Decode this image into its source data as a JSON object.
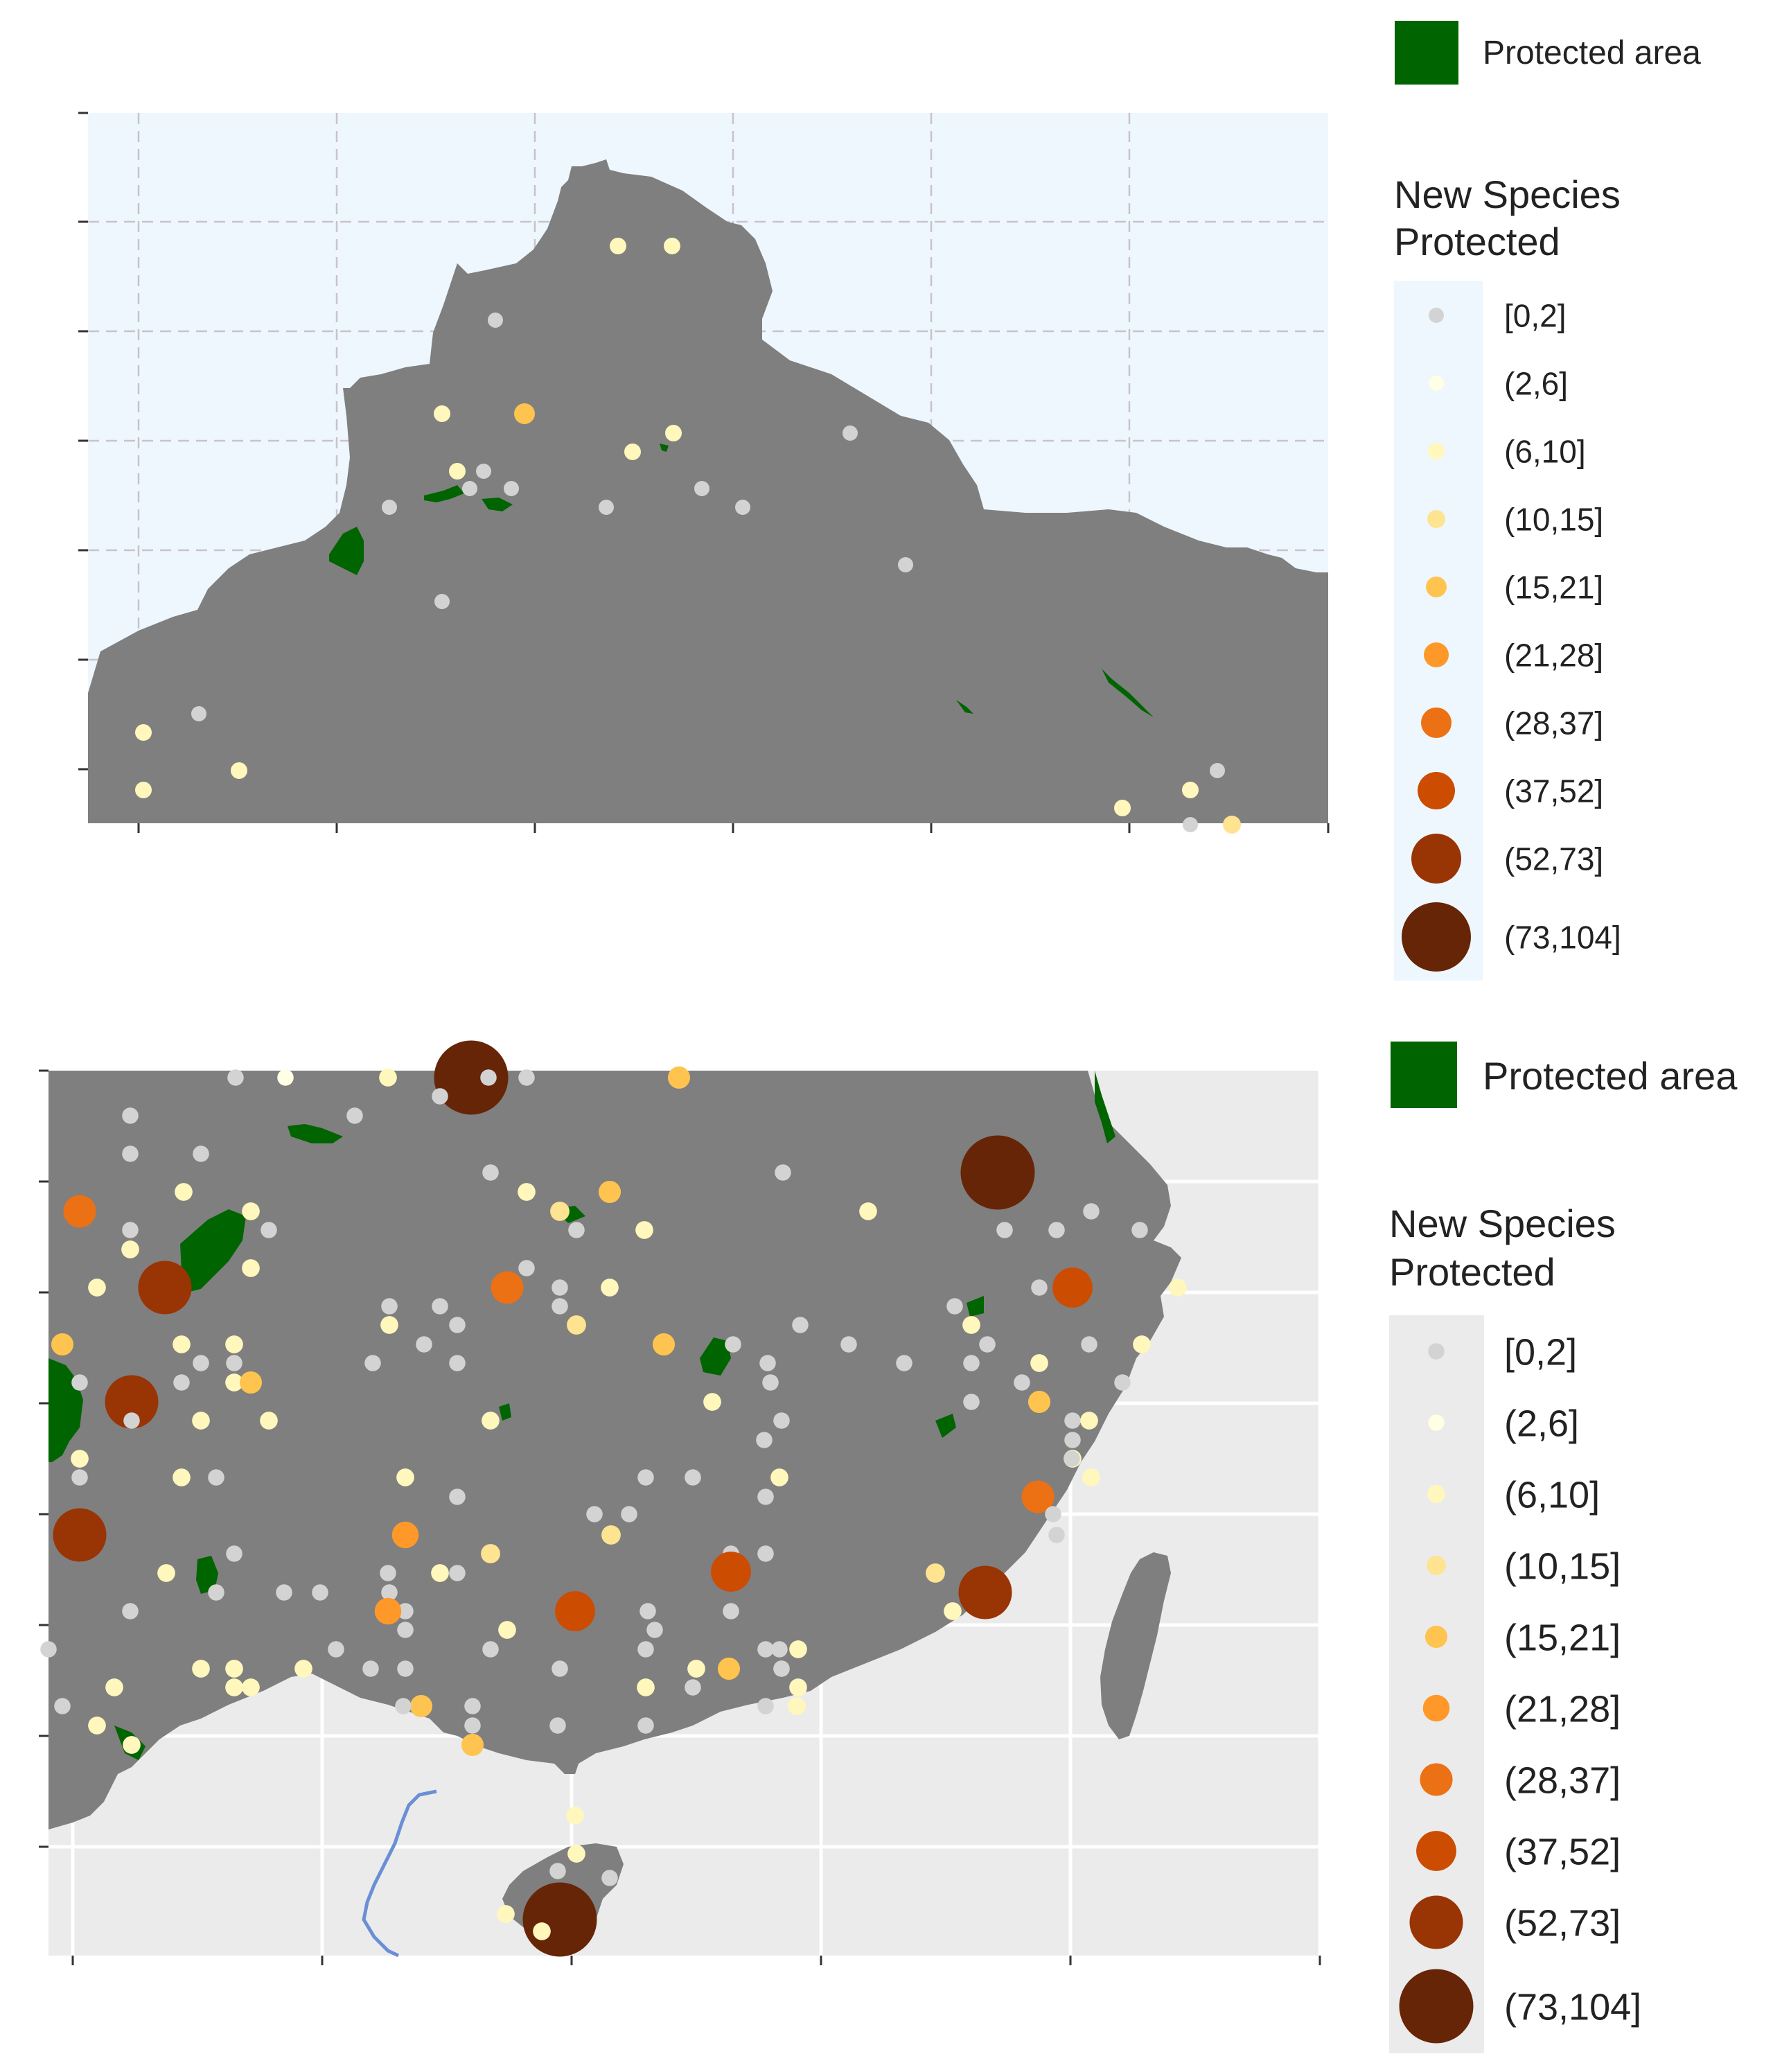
{
  "legend_top": {
    "protected_label": "Protected area",
    "title_line1": "New Species",
    "title_line2": "Protected"
  },
  "legend_bottom": {
    "protected_label": "Protected area",
    "title_line1": "New Species",
    "title_line2": "Protected"
  },
  "classes": [
    {
      "label": "[0,2]",
      "color": "#d3d3d3"
    },
    {
      "label": "(2,6]",
      "color": "#ffffe5"
    },
    {
      "label": "(6,10]",
      "color": "#fff7bc"
    },
    {
      "label": "(10,15]",
      "color": "#fee391"
    },
    {
      "label": "(15,21]",
      "color": "#fec44f"
    },
    {
      "label": "(21,28]",
      "color": "#fe9929"
    },
    {
      "label": "(28,37]",
      "color": "#ec7014"
    },
    {
      "label": "(37,52]",
      "color": "#cc4c02"
    },
    {
      "label": "(52,73]",
      "color": "#993404"
    },
    {
      "label": "(73,104]",
      "color": "#662506"
    }
  ],
  "colors": {
    "land": "#7f7f7f",
    "protected_area": "#006400",
    "sea_top": "#eef7fd",
    "sea_bottom": "#ebebeb",
    "river": "#6b8fd6"
  }
}
